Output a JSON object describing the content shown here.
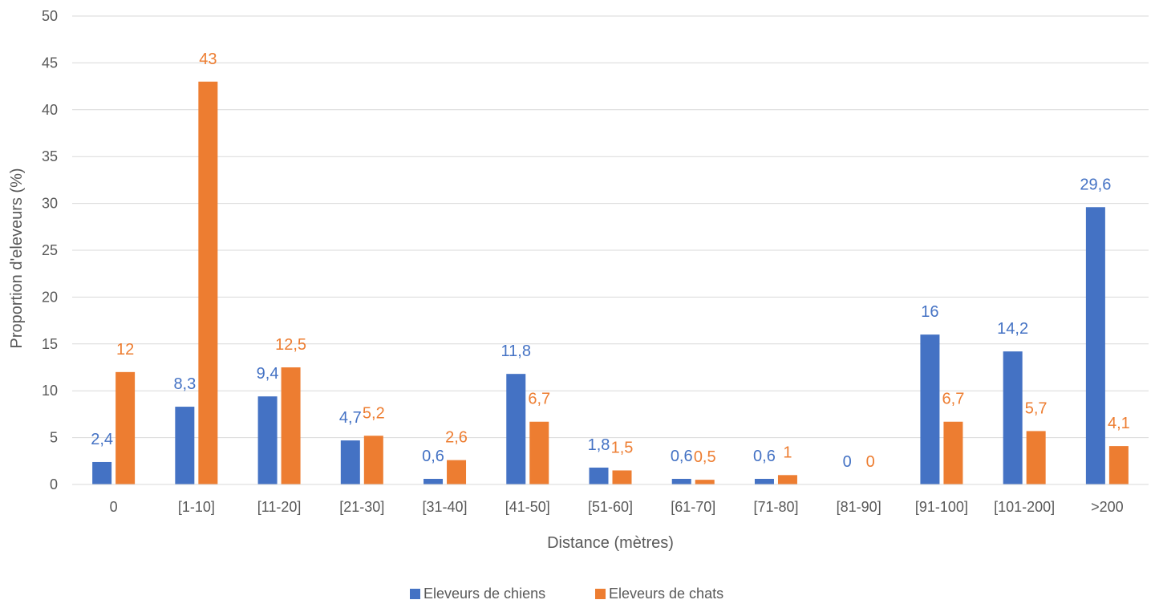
{
  "chart_data": {
    "type": "bar",
    "title": "",
    "xlabel": "Distance (mètres)",
    "ylabel": "Proportion d'eleveurs (%)",
    "ylim": [
      0,
      50
    ],
    "ytick_step": 5,
    "grid": true,
    "legend_position": "bottom",
    "categories": [
      "0",
      "[1-10]",
      "[11-20]",
      "[21-30]",
      "[31-40]",
      "[41-50]",
      "[51-60]",
      "[61-70]",
      "[71-80]",
      "[81-90]",
      "[91-100]",
      "[101-200]",
      ">200"
    ],
    "series": [
      {
        "name": "Eleveurs de chiens",
        "color": "#4472C4",
        "values": [
          2.4,
          8.3,
          9.4,
          4.7,
          0.6,
          11.8,
          1.8,
          0.6,
          0.6,
          0,
          16,
          14.2,
          29.6
        ],
        "labels": [
          "2,4",
          "8,3",
          "9,4",
          "4,7",
          "0,6",
          "11,8",
          "1,8",
          "0,6",
          "0,6",
          "0",
          "16",
          "14,2",
          "29,6"
        ]
      },
      {
        "name": "Eleveurs de chats",
        "color": "#ED7D31",
        "values": [
          12,
          43,
          12.5,
          5.2,
          2.6,
          6.7,
          1.5,
          0.5,
          1,
          0,
          6.7,
          5.7,
          4.1
        ],
        "labels": [
          "12",
          "43",
          "12,5",
          "5,2",
          "2,6",
          "6,7",
          "1,5",
          "0,5",
          "1",
          "0",
          "6,7",
          "5,7",
          "4,1"
        ]
      }
    ]
  }
}
